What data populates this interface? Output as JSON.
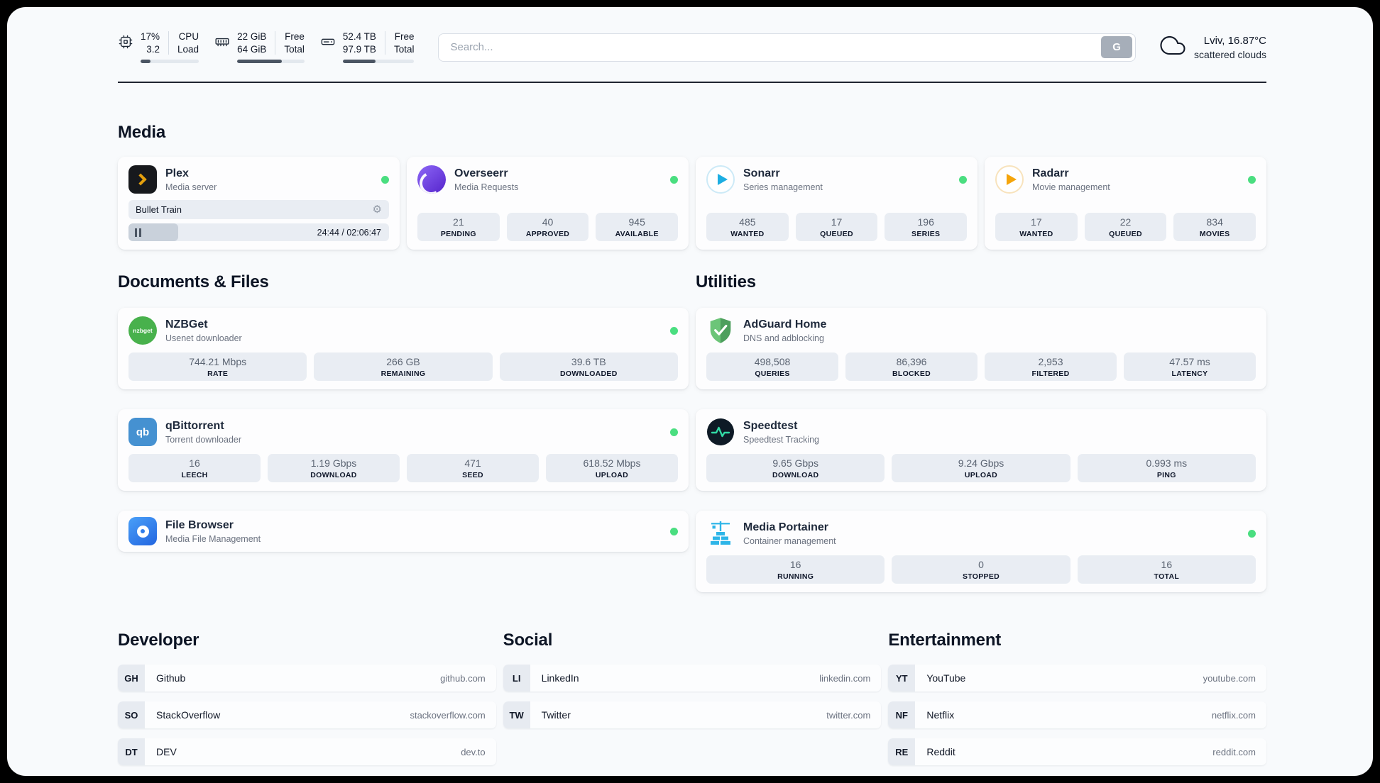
{
  "topbar": {
    "monitors": [
      {
        "icon": "cpu-icon",
        "values": [
          "17%",
          "3.2"
        ],
        "labels": [
          "CPU",
          "Load"
        ],
        "progress": 17
      },
      {
        "icon": "ram-icon",
        "values": [
          "22 GiB",
          "64 GiB"
        ],
        "labels": [
          "Free",
          "Total"
        ],
        "progress": 66
      },
      {
        "icon": "disk-icon",
        "values": [
          "52.4 TB",
          "97.9 TB"
        ],
        "labels": [
          "Free",
          "Total"
        ],
        "progress": 46
      }
    ],
    "search": {
      "placeholder": "Search...",
      "button_label": "G"
    },
    "weather": {
      "icon": "cloud-icon",
      "line1": "Lviv, 16.87°C",
      "line2": "scattered clouds"
    }
  },
  "sections": {
    "media": {
      "title": "Media",
      "apps": [
        {
          "name": "Plex",
          "subtitle": "Media server",
          "icon": "plex-icon",
          "online": true,
          "now_playing": {
            "title": "Bullet Train",
            "time": "24:44 / 02:06:47",
            "progress": 19
          }
        },
        {
          "name": "Overseerr",
          "subtitle": "Media Requests",
          "icon": "overseerr-icon",
          "online": true,
          "stats": [
            {
              "value": "21",
              "label": "PENDING"
            },
            {
              "value": "40",
              "label": "APPROVED"
            },
            {
              "value": "945",
              "label": "AVAILABLE"
            }
          ]
        },
        {
          "name": "Sonarr",
          "subtitle": "Series management",
          "icon": "sonarr-icon",
          "online": true,
          "stats": [
            {
              "value": "485",
              "label": "WANTED"
            },
            {
              "value": "17",
              "label": "QUEUED"
            },
            {
              "value": "196",
              "label": "SERIES"
            }
          ]
        },
        {
          "name": "Radarr",
          "subtitle": "Movie management",
          "icon": "radarr-icon",
          "online": true,
          "stats": [
            {
              "value": "17",
              "label": "WANTED"
            },
            {
              "value": "22",
              "label": "QUEUED"
            },
            {
              "value": "834",
              "label": "MOVIES"
            }
          ]
        }
      ]
    },
    "documents": {
      "title": "Documents & Files",
      "apps": [
        {
          "name": "NZBGet",
          "subtitle": "Usenet downloader",
          "icon": "nzbget-icon",
          "icon_text": "nzbget",
          "online": true,
          "stats": [
            {
              "value": "744.21 Mbps",
              "label": "RATE"
            },
            {
              "value": "266 GB",
              "label": "REMAINING"
            },
            {
              "value": "39.6 TB",
              "label": "DOWNLOADED"
            }
          ]
        },
        {
          "name": "qBittorrent",
          "subtitle": "Torrent downloader",
          "icon": "qbittorrent-icon",
          "icon_text": "qb",
          "online": true,
          "stats": [
            {
              "value": "16",
              "label": "LEECH"
            },
            {
              "value": "1.19 Gbps",
              "label": "DOWNLOAD"
            },
            {
              "value": "471",
              "label": "SEED"
            },
            {
              "value": "618.52 Mbps",
              "label": "UPLOAD"
            }
          ]
        },
        {
          "name": "File Browser",
          "subtitle": "Media File Management",
          "icon": "filebrowser-icon",
          "online": true,
          "stats": []
        }
      ]
    },
    "utilities": {
      "title": "Utilities",
      "apps": [
        {
          "name": "AdGuard Home",
          "subtitle": "DNS and adblocking",
          "icon": "adguard-icon",
          "online": false,
          "stats": [
            {
              "value": "498,508",
              "label": "QUERIES"
            },
            {
              "value": "86,396",
              "label": "BLOCKED"
            },
            {
              "value": "2,953",
              "label": "FILTERED"
            },
            {
              "value": "47.57 ms",
              "label": "LATENCY"
            }
          ]
        },
        {
          "name": "Speedtest",
          "subtitle": "Speedtest Tracking",
          "icon": "speedtest-icon",
          "online": false,
          "stats": [
            {
              "value": "9.65 Gbps",
              "label": "DOWNLOAD"
            },
            {
              "value": "9.24 Gbps",
              "label": "UPLOAD"
            },
            {
              "value": "0.993 ms",
              "label": "PING"
            }
          ]
        },
        {
          "name": "Media Portainer",
          "subtitle": "Container management",
          "icon": "portainer-icon",
          "online": true,
          "stats": [
            {
              "value": "16",
              "label": "RUNNING"
            },
            {
              "value": "0",
              "label": "STOPPED"
            },
            {
              "value": "16",
              "label": "TOTAL"
            }
          ]
        }
      ]
    },
    "bookmarks": [
      {
        "title": "Developer",
        "links": [
          {
            "abbr": "GH",
            "name": "Github",
            "url": "github.com"
          },
          {
            "abbr": "SO",
            "name": "StackOverflow",
            "url": "stackoverflow.com"
          },
          {
            "abbr": "DT",
            "name": "DEV",
            "url": "dev.to"
          }
        ]
      },
      {
        "title": "Social",
        "links": [
          {
            "abbr": "LI",
            "name": "LinkedIn",
            "url": "linkedin.com"
          },
          {
            "abbr": "TW",
            "name": "Twitter",
            "url": "twitter.com"
          }
        ]
      },
      {
        "title": "Entertainment",
        "links": [
          {
            "abbr": "YT",
            "name": "YouTube",
            "url": "youtube.com"
          },
          {
            "abbr": "NF",
            "name": "Netflix",
            "url": "netflix.com"
          },
          {
            "abbr": "RE",
            "name": "Reddit",
            "url": "reddit.com"
          }
        ]
      }
    ]
  },
  "colors": {
    "status_online": "#4ade80",
    "page_background": "#f8fafc",
    "stat_box": "#e9edf3",
    "accent_plex": "#e5a00d",
    "accent_sonarr": "#1daee2",
    "accent_radarr": "#f5a50b",
    "accent_nzbget": "#48b14c",
    "accent_qbittorrent": "#4591d1",
    "accent_filebrowser": "#2f7cea",
    "accent_adguard": "#5aa868",
    "accent_speedtest": "#31d8a4",
    "accent_portainer": "#2db5e8"
  }
}
